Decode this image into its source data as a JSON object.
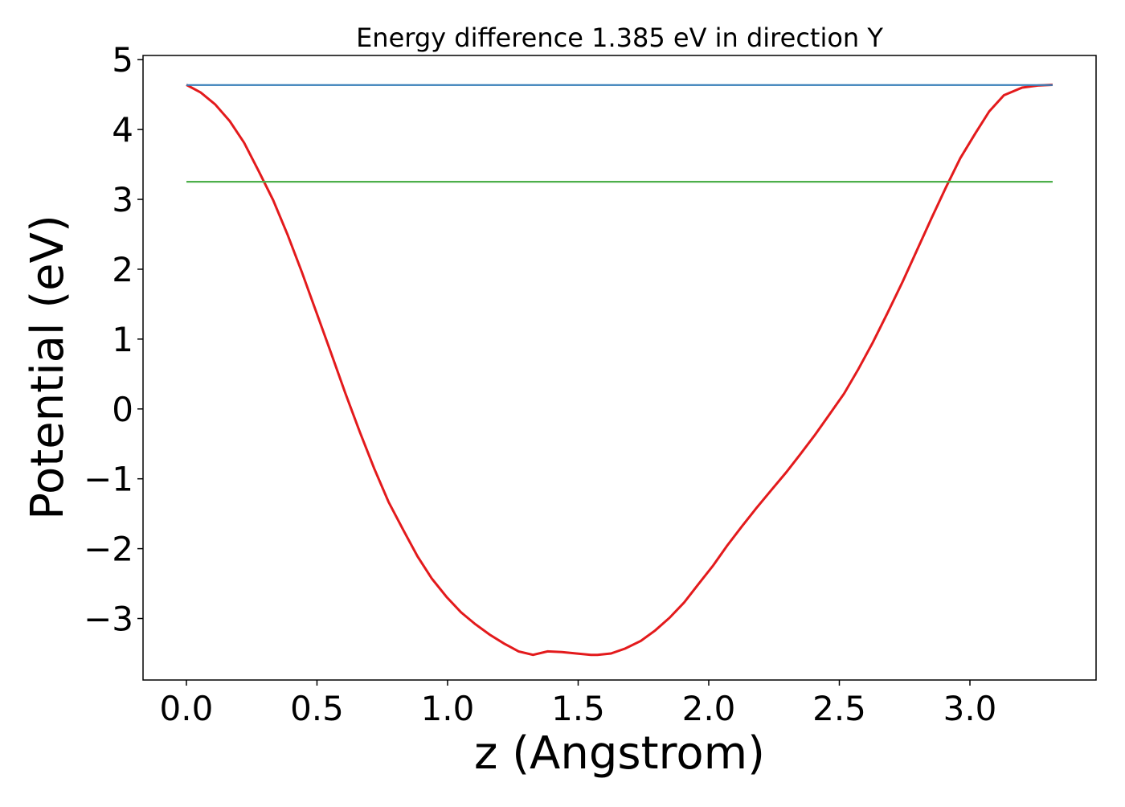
{
  "chart_data": {
    "type": "line",
    "title": "Energy difference 1.385 eV in direction Y",
    "xlabel": "z (Angstrom)",
    "ylabel": "Potential (eV)",
    "xlim": [
      -0.166,
      3.483
    ],
    "ylim": [
      -3.88,
      5.06
    ],
    "xticks": [
      0.0,
      0.5,
      1.0,
      1.5,
      2.0,
      2.5,
      3.0
    ],
    "xtick_labels": [
      "0.0",
      "0.5",
      "1.0",
      "1.5",
      "2.0",
      "2.5",
      "3.0"
    ],
    "yticks": [
      -3,
      -2,
      -1,
      0,
      1,
      2,
      3,
      4,
      5
    ],
    "ytick_labels": [
      "−3",
      "−2",
      "−1",
      "0",
      "1",
      "2",
      "3",
      "4",
      "5"
    ],
    "grid": false,
    "series": [
      {
        "color": "#e31a1c",
        "x": [
          0,
          0.055,
          0.11,
          0.166,
          0.221,
          0.276,
          0.332,
          0.387,
          0.442,
          0.498,
          0.553,
          0.608,
          0.664,
          0.719,
          0.774,
          0.83,
          0.885,
          0.94,
          0.996,
          1.051,
          1.106,
          1.161,
          1.217,
          1.272,
          1.327,
          1.383,
          1.438,
          1.493,
          1.549,
          1.574,
          1.626,
          1.68,
          1.74,
          1.795,
          1.85,
          1.906,
          1.96,
          2.017,
          2.07,
          2.127,
          2.18,
          2.24,
          2.296,
          2.35,
          2.407,
          2.46,
          2.518,
          2.573,
          2.628,
          2.684,
          2.742,
          2.797,
          2.853,
          2.908,
          2.963,
          3.02,
          3.074,
          3.13,
          3.2,
          3.26,
          3.317
        ],
        "y": [
          4.64,
          4.53,
          4.36,
          4.12,
          3.81,
          3.41,
          2.99,
          2.5,
          1.96,
          1.38,
          0.81,
          0.23,
          -0.33,
          -0.85,
          -1.33,
          -1.73,
          -2.11,
          -2.43,
          -2.69,
          -2.91,
          -3.08,
          -3.23,
          -3.36,
          -3.47,
          -3.52,
          -3.47,
          -3.48,
          -3.5,
          -3.52,
          -3.52,
          -3.5,
          -3.43,
          -3.32,
          -3.17,
          -2.99,
          -2.77,
          -2.51,
          -2.24,
          -1.96,
          -1.68,
          -1.43,
          -1.16,
          -0.91,
          -0.65,
          -0.37,
          -0.09,
          0.22,
          0.57,
          0.95,
          1.37,
          1.82,
          2.27,
          2.73,
          3.17,
          3.59,
          3.94,
          4.26,
          4.49,
          4.6,
          4.63,
          4.64
        ]
      },
      {
        "color": "#377eb8",
        "x": [
          0,
          3.317
        ],
        "y": [
          4.637,
          4.637
        ]
      },
      {
        "color": "#4daf4a",
        "x": [
          0,
          3.317
        ],
        "y": [
          3.252,
          3.252
        ]
      }
    ]
  }
}
